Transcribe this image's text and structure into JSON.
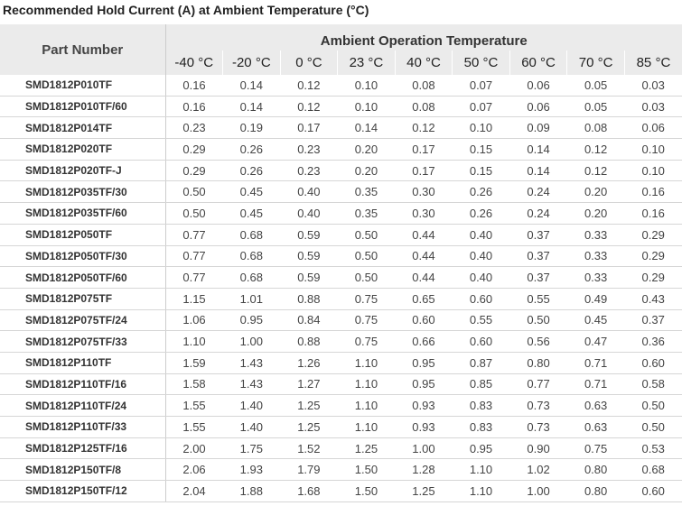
{
  "title": "Recommended Hold Current (A) at Ambient Temperature (°C)",
  "table": {
    "header": {
      "part_number": "Part Number",
      "group": "Ambient Operation Temperature",
      "columns": [
        "-40 °C",
        "-20 °C",
        "0 °C",
        "23 °C",
        "40 °C",
        "50 °C",
        "60 °C",
        "70 °C",
        "85 °C"
      ]
    },
    "rows": [
      {
        "part": "SMD1812P010TF",
        "values": [
          "0.16",
          "0.14",
          "0.12",
          "0.10",
          "0.08",
          "0.07",
          "0.06",
          "0.05",
          "0.03"
        ]
      },
      {
        "part": "SMD1812P010TF/60",
        "values": [
          "0.16",
          "0.14",
          "0.12",
          "0.10",
          "0.08",
          "0.07",
          "0.06",
          "0.05",
          "0.03"
        ]
      },
      {
        "part": "SMD1812P014TF",
        "values": [
          "0.23",
          "0.19",
          "0.17",
          "0.14",
          "0.12",
          "0.10",
          "0.09",
          "0.08",
          "0.06"
        ]
      },
      {
        "part": "SMD1812P020TF",
        "values": [
          "0.29",
          "0.26",
          "0.23",
          "0.20",
          "0.17",
          "0.15",
          "0.14",
          "0.12",
          "0.10"
        ]
      },
      {
        "part": "SMD1812P020TF-J",
        "values": [
          "0.29",
          "0.26",
          "0.23",
          "0.20",
          "0.17",
          "0.15",
          "0.14",
          "0.12",
          "0.10"
        ]
      },
      {
        "part": "SMD1812P035TF/30",
        "values": [
          "0.50",
          "0.45",
          "0.40",
          "0.35",
          "0.30",
          "0.26",
          "0.24",
          "0.20",
          "0.16"
        ]
      },
      {
        "part": "SMD1812P035TF/60",
        "values": [
          "0.50",
          "0.45",
          "0.40",
          "0.35",
          "0.30",
          "0.26",
          "0.24",
          "0.20",
          "0.16"
        ]
      },
      {
        "part": "SMD1812P050TF",
        "values": [
          "0.77",
          "0.68",
          "0.59",
          "0.50",
          "0.44",
          "0.40",
          "0.37",
          "0.33",
          "0.29"
        ]
      },
      {
        "part": "SMD1812P050TF/30",
        "values": [
          "0.77",
          "0.68",
          "0.59",
          "0.50",
          "0.44",
          "0.40",
          "0.37",
          "0.33",
          "0.29"
        ]
      },
      {
        "part": "SMD1812P050TF/60",
        "values": [
          "0.77",
          "0.68",
          "0.59",
          "0.50",
          "0.44",
          "0.40",
          "0.37",
          "0.33",
          "0.29"
        ]
      },
      {
        "part": "SMD1812P075TF",
        "values": [
          "1.15",
          "1.01",
          "0.88",
          "0.75",
          "0.65",
          "0.60",
          "0.55",
          "0.49",
          "0.43"
        ]
      },
      {
        "part": "SMD1812P075TF/24",
        "values": [
          "1.06",
          "0.95",
          "0.84",
          "0.75",
          "0.60",
          "0.55",
          "0.50",
          "0.45",
          "0.37"
        ]
      },
      {
        "part": "SMD1812P075TF/33",
        "values": [
          "1.10",
          "1.00",
          "0.88",
          "0.75",
          "0.66",
          "0.60",
          "0.56",
          "0.47",
          "0.36"
        ]
      },
      {
        "part": "SMD1812P110TF",
        "values": [
          "1.59",
          "1.43",
          "1.26",
          "1.10",
          "0.95",
          "0.87",
          "0.80",
          "0.71",
          "0.60"
        ]
      },
      {
        "part": "SMD1812P110TF/16",
        "values": [
          "1.58",
          "1.43",
          "1.27",
          "1.10",
          "0.95",
          "0.85",
          "0.77",
          "0.71",
          "0.58"
        ]
      },
      {
        "part": "SMD1812P110TF/24",
        "values": [
          "1.55",
          "1.40",
          "1.25",
          "1.10",
          "0.93",
          "0.83",
          "0.73",
          "0.63",
          "0.50"
        ]
      },
      {
        "part": "SMD1812P110TF/33",
        "values": [
          "1.55",
          "1.40",
          "1.25",
          "1.10",
          "0.93",
          "0.83",
          "0.73",
          "0.63",
          "0.50"
        ]
      },
      {
        "part": "SMD1812P125TF/16",
        "values": [
          "2.00",
          "1.75",
          "1.52",
          "1.25",
          "1.00",
          "0.95",
          "0.90",
          "0.75",
          "0.53"
        ]
      },
      {
        "part": "SMD1812P150TF/8",
        "values": [
          "2.06",
          "1.93",
          "1.79",
          "1.50",
          "1.28",
          "1.10",
          "1.02",
          "0.80",
          "0.68"
        ]
      },
      {
        "part": "SMD1812P150TF/12",
        "values": [
          "2.04",
          "1.88",
          "1.68",
          "1.50",
          "1.25",
          "1.10",
          "1.00",
          "0.80",
          "0.60"
        ]
      }
    ]
  }
}
